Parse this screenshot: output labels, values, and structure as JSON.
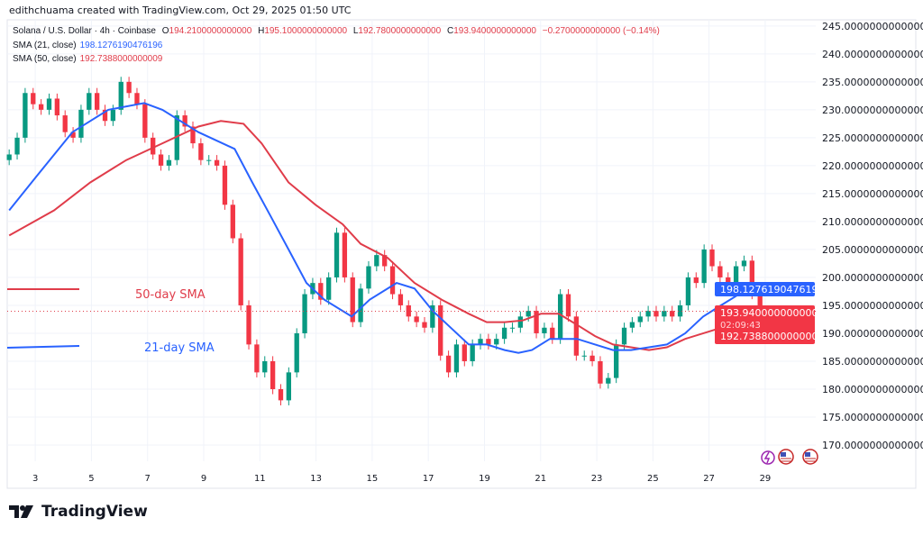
{
  "header": {
    "credit": "edithchuama created with TradingView.com, Oct 29, 2025 01:50 UTC"
  },
  "legend": {
    "symbol": "Solana / U.S. Dollar · 4h · Coinbase",
    "open_label": "O",
    "open": "194.2100000000000",
    "high_label": "H",
    "high": "195.1000000000000",
    "low_label": "L",
    "low": "192.7800000000000",
    "close_label": "C",
    "close": "193.9400000000000",
    "change": "−0.2700000000000 (−0.14%)",
    "sma21_label": "SMA (21, close)",
    "sma21_value": "198.1276190476196",
    "sma50_label": "SMA (50, close)",
    "sma50_value": "192.7388000000009"
  },
  "annotations": {
    "sma50": "50-day SMA",
    "sma21": "21-day SMA"
  },
  "price_tags": {
    "sma21": "198.1276190476196",
    "last": "193.9400000000000",
    "countdown": "02:09:43",
    "sma50": "192.7388000000009"
  },
  "brand": {
    "name": "TradingView"
  },
  "colors": {
    "up": "#089981",
    "down": "#f23645",
    "sma21": "#2962ff",
    "sma50": "#e03c4a",
    "grid": "#f0f3fa"
  },
  "chart_data": {
    "type": "candlestick",
    "title": "Solana / U.S. Dollar · 4h · Coinbase",
    "xlim": [
      2.0,
      30.8
    ],
    "ylim": [
      167.1,
      246.1
    ],
    "grid": true,
    "x_ticks": [
      "3",
      "5",
      "7",
      "9",
      "11",
      "13",
      "15",
      "17",
      "19",
      "21",
      "23",
      "25",
      "27",
      "29"
    ],
    "y_ticks": [
      "245.0000000000000",
      "240.0000000000000",
      "235.0000000000000",
      "230.0000000000000",
      "225.0000000000000",
      "220.0000000000000",
      "215.0000000000000",
      "210.0000000000000",
      "205.0000000000000",
      "200.0000000000000",
      "195.0000000000000",
      "190.0000000000000",
      "185.0000000000000",
      "180.0000000000000",
      "175.0000000000000",
      "170.0000000000000"
    ],
    "closes_x_range": [
      2.07,
      29.1
    ],
    "closes": [
      222,
      225,
      233,
      231,
      230,
      232,
      229,
      226,
      225,
      230,
      233,
      230,
      228,
      230,
      235,
      233,
      231,
      225,
      222,
      220,
      221,
      229,
      227,
      224,
      221,
      221,
      220,
      213,
      207,
      195,
      188,
      183,
      185,
      180,
      178,
      183,
      190,
      197,
      199,
      196,
      200,
      208,
      200,
      192,
      198,
      202,
      204,
      202,
      197,
      195,
      193,
      192,
      191,
      195,
      186,
      183,
      188,
      185,
      188,
      189,
      188,
      189,
      191,
      191,
      193,
      194,
      190,
      191,
      189,
      197,
      193,
      186,
      186,
      185,
      181,
      182,
      188,
      191,
      192,
      193,
      194,
      193,
      194,
      193,
      195,
      200,
      199,
      205,
      202,
      200,
      199,
      202,
      203,
      197,
      194,
      193.94
    ],
    "series": [
      {
        "name": "SMA (21, close)",
        "points": [
          [
            2.07,
            212
          ],
          [
            3.03,
            218
          ],
          [
            4.32,
            226
          ],
          [
            5.6,
            230
          ],
          [
            6.88,
            231.2
          ],
          [
            7.53,
            230
          ],
          [
            8.81,
            226
          ],
          [
            10.1,
            223
          ],
          [
            10.73,
            217
          ],
          [
            11.38,
            211
          ],
          [
            12.02,
            205
          ],
          [
            12.66,
            199
          ],
          [
            13.3,
            196
          ],
          [
            14.27,
            193
          ],
          [
            14.91,
            196
          ],
          [
            15.87,
            199
          ],
          [
            16.51,
            198
          ],
          [
            17.16,
            194
          ],
          [
            17.8,
            191
          ],
          [
            18.44,
            188
          ],
          [
            19.08,
            188
          ],
          [
            19.72,
            187
          ],
          [
            20.21,
            186.5
          ],
          [
            20.69,
            187
          ],
          [
            21.33,
            189
          ],
          [
            22.3,
            189
          ],
          [
            22.94,
            188
          ],
          [
            23.58,
            187
          ],
          [
            24.22,
            187
          ],
          [
            24.86,
            187.5
          ],
          [
            25.5,
            188
          ],
          [
            26.15,
            190
          ],
          [
            26.79,
            193
          ],
          [
            27.43,
            195
          ],
          [
            28.07,
            197
          ],
          [
            28.71,
            198.1
          ],
          [
            29.1,
            198.13
          ]
        ]
      },
      {
        "name": "SMA (50, close)",
        "points": [
          [
            2.07,
            207.5
          ],
          [
            3.67,
            212
          ],
          [
            4.96,
            217
          ],
          [
            6.24,
            221
          ],
          [
            7.53,
            224
          ],
          [
            8.81,
            227
          ],
          [
            9.61,
            228
          ],
          [
            10.42,
            227.5
          ],
          [
            11.06,
            224
          ],
          [
            12.02,
            217
          ],
          [
            12.98,
            213
          ],
          [
            13.95,
            209.5
          ],
          [
            14.59,
            206
          ],
          [
            15.55,
            203.5
          ],
          [
            16.51,
            199
          ],
          [
            17.48,
            196
          ],
          [
            18.44,
            193.5
          ],
          [
            19.08,
            192
          ],
          [
            19.72,
            192
          ],
          [
            20.37,
            192.3
          ],
          [
            21.01,
            193.5
          ],
          [
            21.65,
            193.5
          ],
          [
            22.3,
            191.5
          ],
          [
            22.94,
            189.5
          ],
          [
            23.58,
            188
          ],
          [
            24.22,
            187.5
          ],
          [
            24.86,
            187
          ],
          [
            25.5,
            187.5
          ],
          [
            26.15,
            189
          ],
          [
            27.11,
            190.5
          ],
          [
            28.07,
            192
          ],
          [
            29.1,
            192.74
          ]
        ]
      }
    ]
  }
}
